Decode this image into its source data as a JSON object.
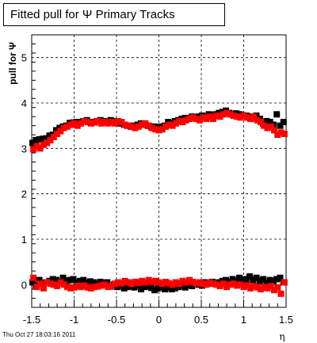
{
  "chart_data": {
    "type": "scatter",
    "title": "Fitted pull for  Ψ   Primary Tracks",
    "xlabel": "η",
    "ylabel": "pull for  Ψ",
    "xlim": [
      -1.5,
      1.5
    ],
    "ylim": [
      -0.5,
      5.5
    ],
    "grid": true,
    "xticks": [
      -1.5,
      -1,
      -0.5,
      0,
      0.5,
      1,
      1.5
    ],
    "xtick_labels": [
      "-1.5",
      "-1",
      "-0.5",
      "0",
      "0.5",
      "1",
      "1.5"
    ],
    "yticks": [
      0,
      1,
      2,
      3,
      4,
      5
    ],
    "ytick_labels": [
      "0",
      "1",
      "2",
      "3",
      "4",
      "5"
    ],
    "series": [
      {
        "color": "#000000",
        "marker": "square",
        "x": [
          -1.49,
          -1.45,
          -1.41,
          -1.37,
          -1.33,
          -1.29,
          -1.25,
          -1.21,
          -1.17,
          -1.13,
          -1.09,
          -1.05,
          -1.01,
          -0.97,
          -0.93,
          -0.89,
          -0.85,
          -0.81,
          -0.77,
          -0.73,
          -0.69,
          -0.65,
          -0.61,
          -0.57,
          -0.53,
          -0.49,
          -0.45,
          -0.41,
          -0.37,
          -0.33,
          -0.29,
          -0.25,
          -0.21,
          -0.17,
          -0.13,
          -0.09,
          -0.05,
          -0.01,
          0.03,
          0.07,
          0.11,
          0.15,
          0.19,
          0.23,
          0.27,
          0.31,
          0.35,
          0.39,
          0.43,
          0.47,
          0.51,
          0.55,
          0.59,
          0.63,
          0.67,
          0.71,
          0.75,
          0.79,
          0.83,
          0.87,
          0.91,
          0.95,
          0.99,
          1.03,
          1.07,
          1.11,
          1.15,
          1.19,
          1.23,
          1.27,
          1.31,
          1.35,
          1.39,
          1.43,
          1.47
        ],
        "y": [
          3.12,
          3.18,
          3.2,
          3.21,
          3.22,
          3.28,
          3.3,
          3.4,
          3.45,
          3.48,
          3.5,
          3.56,
          3.57,
          3.58,
          3.58,
          3.6,
          3.62,
          3.58,
          3.58,
          3.6,
          3.62,
          3.6,
          3.58,
          3.62,
          3.6,
          3.58,
          3.55,
          3.52,
          3.5,
          3.48,
          3.5,
          3.52,
          3.55,
          3.53,
          3.5,
          3.47,
          3.48,
          3.45,
          3.48,
          3.5,
          3.58,
          3.55,
          3.6,
          3.62,
          3.65,
          3.67,
          3.66,
          3.7,
          3.68,
          3.7,
          3.72,
          3.7,
          3.75,
          3.72,
          3.75,
          3.78,
          3.8,
          3.83,
          3.78,
          3.75,
          3.77,
          3.75,
          3.73,
          3.72,
          3.7,
          3.68,
          3.72,
          3.65,
          3.55,
          3.6,
          3.58,
          3.52,
          3.75,
          3.5,
          3.58
        ],
        "x2": [
          -1.49,
          -1.45,
          -1.41,
          -1.37,
          -1.33,
          -1.29,
          -1.25,
          -1.21,
          -1.17,
          -1.13,
          -1.09,
          -1.05,
          -1.01,
          -0.97,
          -0.93,
          -0.89,
          -0.85,
          -0.81,
          -0.77,
          -0.73,
          -0.69,
          -0.65,
          -0.61,
          -0.57,
          -0.53,
          -0.49,
          -0.45,
          -0.41,
          -0.37,
          -0.33,
          -0.29,
          -0.25,
          -0.21,
          -0.17,
          -0.13,
          -0.09,
          -0.05,
          -0.01,
          0.03,
          0.07,
          0.11,
          0.15,
          0.19,
          0.23,
          0.27,
          0.31,
          0.35,
          0.39,
          0.43,
          0.47,
          0.51,
          0.55,
          0.59,
          0.63,
          0.67,
          0.71,
          0.75,
          0.79,
          0.83,
          0.87,
          0.91,
          0.95,
          0.99,
          1.03,
          1.07,
          1.11,
          1.15,
          1.19,
          1.23,
          1.27,
          1.31,
          1.35,
          1.39,
          1.43,
          1.47
        ],
        "y2": [
          0.05,
          -0.02,
          0.1,
          0.03,
          0.05,
          0.08,
          0.12,
          0.1,
          0.06,
          0.15,
          0.08,
          0.1,
          0.12,
          0.05,
          0.08,
          0.1,
          0.04,
          0.07,
          0.05,
          0.02,
          0.06,
          0.03,
          0.05,
          -0.04,
          0.0,
          -0.05,
          -0.02,
          -0.08,
          -0.05,
          -0.03,
          -0.06,
          -0.02,
          -0.1,
          -0.05,
          -0.03,
          -0.07,
          -0.12,
          -0.08,
          -0.05,
          -0.1,
          -0.06,
          -0.1,
          -0.08,
          -0.05,
          -0.02,
          -0.06,
          0.0,
          -0.03,
          0.02,
          0.0,
          -0.02,
          0.05,
          0.03,
          0.06,
          0.02,
          0.05,
          0.08,
          0.1,
          0.06,
          0.12,
          0.08,
          0.15,
          0.1,
          0.12,
          0.18,
          0.1,
          0.15,
          0.08,
          0.12,
          0.05,
          0.1,
          0.08,
          0.12,
          0.15,
          0.05
        ]
      },
      {
        "color": "#ff0000",
        "marker": "square",
        "x": [
          -1.48,
          -1.44,
          -1.4,
          -1.36,
          -1.32,
          -1.28,
          -1.24,
          -1.2,
          -1.16,
          -1.12,
          -1.08,
          -1.04,
          -1.0,
          -0.96,
          -0.92,
          -0.88,
          -0.84,
          -0.8,
          -0.76,
          -0.72,
          -0.68,
          -0.64,
          -0.6,
          -0.56,
          -0.52,
          -0.48,
          -0.44,
          -0.4,
          -0.36,
          -0.32,
          -0.28,
          -0.24,
          -0.2,
          -0.16,
          -0.12,
          -0.08,
          -0.04,
          0.0,
          0.04,
          0.08,
          0.12,
          0.16,
          0.2,
          0.24,
          0.28,
          0.32,
          0.36,
          0.4,
          0.44,
          0.48,
          0.52,
          0.56,
          0.6,
          0.64,
          0.68,
          0.72,
          0.76,
          0.8,
          0.84,
          0.88,
          0.92,
          0.96,
          1.0,
          1.04,
          1.08,
          1.12,
          1.16,
          1.2,
          1.24,
          1.28,
          1.32,
          1.36,
          1.4,
          1.44,
          1.48
        ],
        "y": [
          2.98,
          3.05,
          3.0,
          3.08,
          3.12,
          3.18,
          3.25,
          3.32,
          3.38,
          3.45,
          3.48,
          3.52,
          3.55,
          3.5,
          3.55,
          3.6,
          3.58,
          3.55,
          3.57,
          3.6,
          3.55,
          3.58,
          3.55,
          3.58,
          3.55,
          3.6,
          3.58,
          3.52,
          3.5,
          3.48,
          3.45,
          3.48,
          3.52,
          3.55,
          3.5,
          3.45,
          3.42,
          3.4,
          3.42,
          3.48,
          3.52,
          3.5,
          3.55,
          3.6,
          3.58,
          3.62,
          3.65,
          3.68,
          3.65,
          3.62,
          3.68,
          3.65,
          3.7,
          3.65,
          3.72,
          3.7,
          3.75,
          3.78,
          3.75,
          3.72,
          3.7,
          3.68,
          3.72,
          3.68,
          3.65,
          3.7,
          3.62,
          3.58,
          3.5,
          3.45,
          3.48,
          3.4,
          3.3,
          3.35,
          3.32
        ],
        "x2": [
          -1.48,
          -1.44,
          -1.4,
          -1.36,
          -1.32,
          -1.28,
          -1.24,
          -1.2,
          -1.16,
          -1.12,
          -1.08,
          -1.04,
          -1.0,
          -0.96,
          -0.92,
          -0.88,
          -0.84,
          -0.8,
          -0.76,
          -0.72,
          -0.68,
          -0.64,
          -0.6,
          -0.56,
          -0.52,
          -0.48,
          -0.44,
          -0.4,
          -0.36,
          -0.32,
          -0.28,
          -0.24,
          -0.2,
          -0.16,
          -0.12,
          -0.08,
          -0.04,
          0.0,
          0.04,
          0.08,
          0.12,
          0.16,
          0.2,
          0.24,
          0.28,
          0.32,
          0.36,
          0.4,
          0.44,
          0.48,
          0.52,
          0.56,
          0.6,
          0.64,
          0.68,
          0.72,
          0.76,
          0.8,
          0.84,
          0.88,
          0.92,
          0.96,
          1.0,
          1.04,
          1.08,
          1.12,
          1.16,
          1.2,
          1.24,
          1.28,
          1.32,
          1.36,
          1.4,
          1.44,
          1.48
        ],
        "y2": [
          0.15,
          -0.05,
          0.02,
          -0.08,
          0.05,
          0.02,
          0.0,
          -0.03,
          0.05,
          0.0,
          -0.05,
          -0.08,
          -0.06,
          -0.03,
          -0.05,
          -0.02,
          -0.06,
          -0.08,
          -0.05,
          -0.04,
          -0.02,
          0.0,
          -0.05,
          -0.03,
          0.02,
          0.05,
          0.03,
          0.08,
          0.05,
          0.02,
          0.06,
          0.04,
          0.08,
          0.05,
          0.1,
          0.06,
          0.08,
          0.05,
          0.02,
          0.06,
          0.03,
          0.0,
          0.05,
          0.02,
          0.08,
          0.05,
          0.1,
          0.06,
          0.03,
          0.05,
          0.02,
          0.0,
          0.05,
          0.02,
          0.0,
          -0.03,
          0.02,
          -0.05,
          0.0,
          0.02,
          -0.02,
          0.0,
          -0.05,
          -0.02,
          -0.08,
          -0.03,
          -0.06,
          -0.1,
          -0.05,
          -0.08,
          -0.03,
          -0.12,
          -0.06,
          -0.2,
          0.05
        ]
      }
    ]
  },
  "footer": {
    "timestamp": "Thu Oct 27 18:03:16 2011"
  }
}
